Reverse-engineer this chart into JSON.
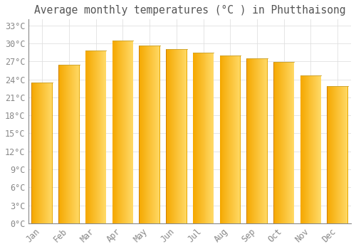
{
  "title": "Average monthly temperatures (°C ) in Phutthaisong",
  "months": [
    "Jan",
    "Feb",
    "Mar",
    "Apr",
    "May",
    "Jun",
    "Jul",
    "Aug",
    "Sep",
    "Oct",
    "Nov",
    "Dec"
  ],
  "values": [
    23.5,
    26.5,
    28.8,
    30.5,
    29.7,
    29.0,
    28.5,
    28.0,
    27.5,
    26.9,
    24.7,
    22.9
  ],
  "bar_color_left": "#F5A800",
  "bar_color_right": "#FFD966",
  "bar_edge_color": "#C8850A",
  "background_color": "#FFFFFF",
  "grid_color": "#E0E0E0",
  "text_color": "#888888",
  "title_color": "#555555",
  "ylim": [
    0,
    34
  ],
  "yticks": [
    0,
    3,
    6,
    9,
    12,
    15,
    18,
    21,
    24,
    27,
    30,
    33
  ],
  "title_fontsize": 10.5,
  "tick_fontsize": 8.5,
  "bar_width": 0.78
}
